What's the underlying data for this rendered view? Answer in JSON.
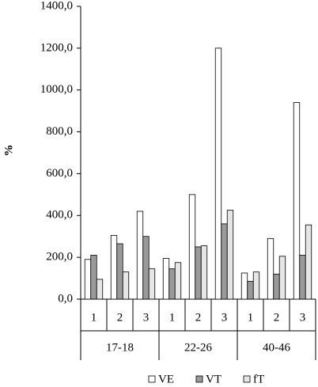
{
  "chart_data": {
    "type": "bar",
    "y_label": "%",
    "categories": [
      "1",
      "2",
      "3",
      "1",
      "2",
      "3",
      "1",
      "2",
      "3"
    ],
    "groups": [
      "17-18",
      "22-26",
      "40-46"
    ],
    "series": [
      {
        "name": "VE",
        "color": "#ffffff",
        "values": [
          190,
          305,
          420,
          195,
          500,
          1200,
          125,
          290,
          940
        ]
      },
      {
        "name": "VT",
        "color": "#9a9a9a",
        "values": [
          210,
          265,
          300,
          145,
          250,
          360,
          85,
          120,
          210
        ]
      },
      {
        "name": "fT",
        "color": "#e6e6e6",
        "values": [
          95,
          130,
          145,
          175,
          255,
          425,
          130,
          205,
          355
        ]
      }
    ],
    "ylim": [
      0,
      1400
    ],
    "yticks": [
      {
        "value": 0,
        "label": "0,0"
      },
      {
        "value": 200,
        "label": "200,0"
      },
      {
        "value": 400,
        "label": "400,0"
      },
      {
        "value": 600,
        "label": "600,0"
      },
      {
        "value": 800,
        "label": "800,0"
      },
      {
        "value": 1000,
        "label": "1000,0"
      },
      {
        "value": 1200,
        "label": "1200,0"
      },
      {
        "value": 1400,
        "label": "1400,0"
      }
    ]
  }
}
